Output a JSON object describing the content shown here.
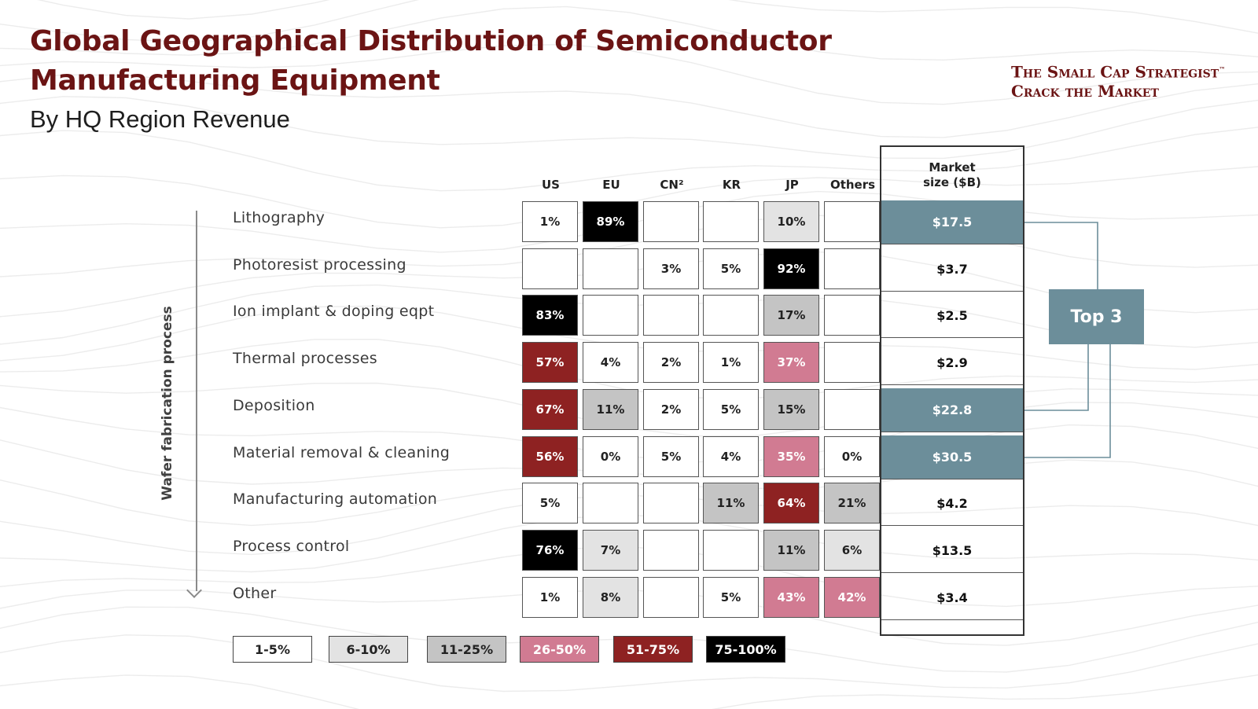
{
  "header": {
    "title_line1": "Global Geographical Distribution of Semiconductor",
    "title_line2": "Manufacturing Equipment",
    "subtitle": "By HQ Region Revenue",
    "brand_line1": "The Small Cap Strategist",
    "brand_tm": "™",
    "brand_line2": "Crack the Market"
  },
  "chart_data": {
    "type": "table",
    "y_axis_label": "Wafer fabrication process",
    "columns": [
      "US",
      "EU",
      "CN²",
      "KR",
      "JP",
      "Others"
    ],
    "market_header_line1": "Market",
    "market_header_line2": "size ($B)",
    "rows": [
      {
        "label": "Lithography",
        "values": [
          "1%",
          "89%",
          "",
          "",
          "10%",
          ""
        ],
        "market": "$17.5",
        "top3": true
      },
      {
        "label": "Photoresist processing",
        "values": [
          "",
          "",
          "3%",
          "5%",
          "92%",
          ""
        ],
        "market": "$3.7",
        "top3": false
      },
      {
        "label": "Ion implant & doping eqpt",
        "values": [
          "83%",
          "",
          "",
          "",
          "17%",
          ""
        ],
        "market": "$2.5",
        "top3": false
      },
      {
        "label": "Thermal processes",
        "values": [
          "57%",
          "4%",
          "2%",
          "1%",
          "37%",
          ""
        ],
        "market": "$2.9",
        "top3": false
      },
      {
        "label": "Deposition",
        "values": [
          "67%",
          "11%",
          "2%",
          "5%",
          "15%",
          ""
        ],
        "market": "$22.8",
        "top3": true
      },
      {
        "label": "Material removal & cleaning",
        "values": [
          "56%",
          "0%",
          "5%",
          "4%",
          "35%",
          "0%"
        ],
        "market": "$30.5",
        "top3": true
      },
      {
        "label": "Manufacturing automation",
        "values": [
          "5%",
          "",
          "",
          "11%",
          "64%",
          "21%"
        ],
        "market": "$4.2",
        "top3": false
      },
      {
        "label": "Process control",
        "values": [
          "76%",
          "7%",
          "",
          "",
          "11%",
          "6%"
        ],
        "market": "$13.5",
        "top3": false
      },
      {
        "label": "Other",
        "values": [
          "1%",
          "8%",
          "",
          "5%",
          "43%",
          "42%"
        ],
        "market": "$3.4",
        "top3": false
      }
    ],
    "top3_label": "Top 3",
    "legend": [
      {
        "label": "1-5%",
        "bg": "#ffffff",
        "fg": "#222222"
      },
      {
        "label": "6-10%",
        "bg": "#e3e3e3",
        "fg": "#222222"
      },
      {
        "label": "11-25%",
        "bg": "#c4c4c4",
        "fg": "#222222"
      },
      {
        "label": "26-50%",
        "bg": "#d17b92",
        "fg": "#ffffff"
      },
      {
        "label": "51-75%",
        "bg": "#8e2222",
        "fg": "#ffffff"
      },
      {
        "label": "75-100%",
        "bg": "#000000",
        "fg": "#ffffff"
      }
    ],
    "colors": {
      "top3": "#6c8e9a",
      "title": "#6b1414"
    }
  }
}
